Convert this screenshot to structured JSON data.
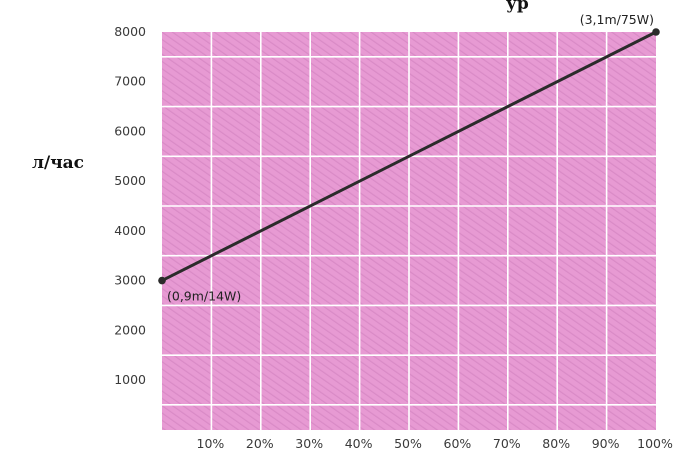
{
  "colors": {
    "plot_background": "#e79ad3",
    "stripe": "#d98ac6",
    "grid": "#ffffff",
    "line": "#2b2b2b",
    "text": "#3a3a3a"
  },
  "header_fragment": "ур",
  "chart_data": {
    "type": "line",
    "title": "",
    "ylabel": "л/час",
    "xlabel": "",
    "x_ticks": [
      "10%",
      "20%",
      "30%",
      "40%",
      "50%",
      "60%",
      "70%",
      "80%",
      "90%",
      "100%"
    ],
    "y_ticks": [
      "1000",
      "2000",
      "3000",
      "4000",
      "5000",
      "6000",
      "7000",
      "8000"
    ],
    "xlim": [
      0,
      100
    ],
    "ylim": [
      0,
      8000
    ],
    "grid": true,
    "series": [
      {
        "points": [
          {
            "x": 0,
            "y": 3000,
            "label": "(0,9m/14W)"
          },
          {
            "x": 100,
            "y": 8000,
            "label": "(3,1m/75W)"
          }
        ]
      }
    ]
  }
}
